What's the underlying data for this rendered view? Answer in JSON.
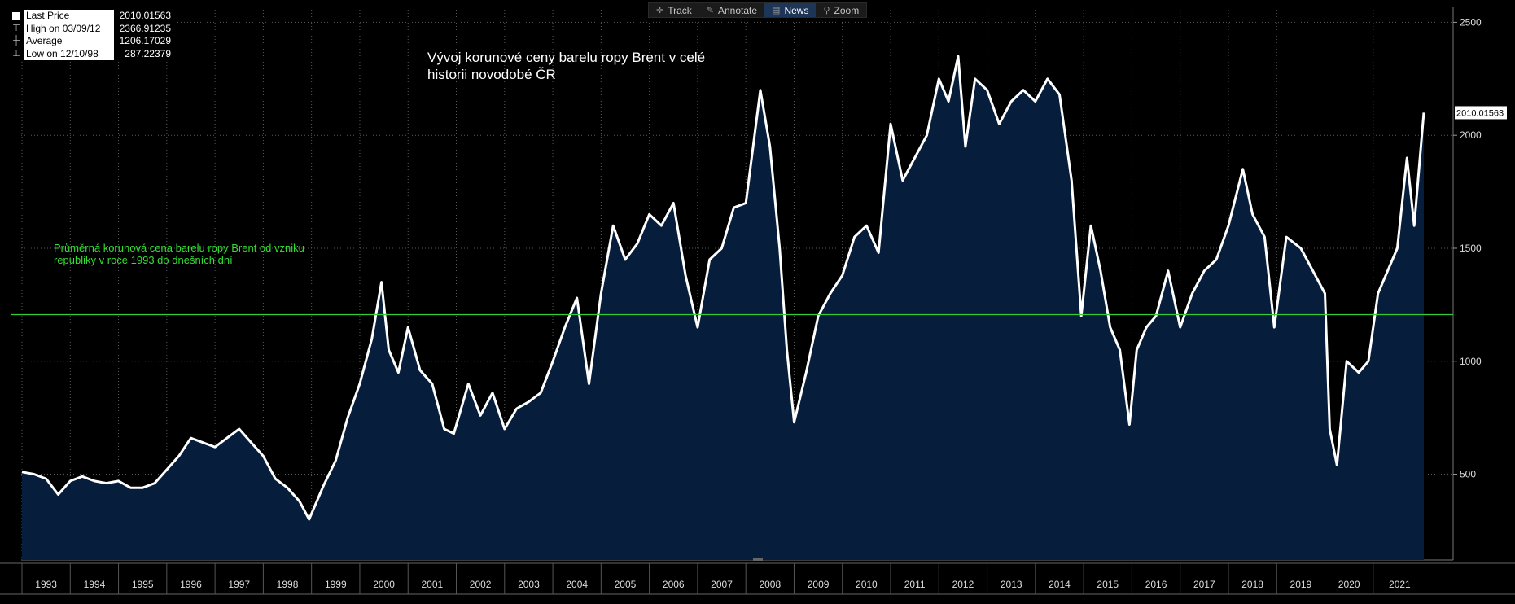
{
  "toolbar": {
    "track": "Track",
    "annotate": "Annotate",
    "news": "News",
    "zoom": "Zoom"
  },
  "legend": [
    {
      "label": "Last Price",
      "value": "2010.01563"
    },
    {
      "label": "High on 03/09/12",
      "value": "2366.91235"
    },
    {
      "label": "Average",
      "value": "1206.17029"
    },
    {
      "label": "Low on 12/10/98",
      "value": "287.22379"
    }
  ],
  "colors": {
    "background": "#000000",
    "area_fill": "#061d3c",
    "line": "#ffffff",
    "average_line": "#33cc33",
    "annotation": "#33dd33"
  },
  "chart_data": {
    "type": "area",
    "title": "Vývoj korunové ceny barelu ropy Brent v celé historii novodobé ČR",
    "title_lines": [
      "Vývoj korunové ceny barelu ropy Brent v celé",
      "historii novodobé ČR"
    ],
    "annotation_lines": [
      "Průměrná korunová cena barelu ropy Brent od vzniku",
      "republiky v roce 1993 do dnešních dní"
    ],
    "average": 1206.17029,
    "average_display": "1206.17029",
    "last_price_label": "2010.01563",
    "ylim": [
      120,
      2570
    ],
    "y_ticks": [
      500,
      1000,
      1500,
      2000,
      2500
    ],
    "y_tick_labels": [
      "500",
      "1000",
      "1500",
      "2000",
      "2500"
    ],
    "xlim": [
      1993.0,
      2022.1
    ],
    "x_tick_labels": [
      "1993",
      "1994",
      "1995",
      "1996",
      "1997",
      "1998",
      "1999",
      "2000",
      "2001",
      "2002",
      "2003",
      "2004",
      "2005",
      "2006",
      "2007",
      "2008",
      "2009",
      "2010",
      "2011",
      "2012",
      "2013",
      "2014",
      "2015",
      "2016",
      "2017",
      "2018",
      "2019",
      "2020",
      "2021"
    ],
    "grid": true,
    "legend_position": "top-left",
    "x": [
      1993.0,
      1993.25,
      1993.5,
      1993.75,
      1994.0,
      1994.25,
      1994.5,
      1994.75,
      1995.0,
      1995.25,
      1995.5,
      1995.75,
      1996.0,
      1996.25,
      1996.5,
      1996.75,
      1997.0,
      1997.25,
      1997.5,
      1997.75,
      1998.0,
      1998.25,
      1998.5,
      1998.75,
      1998.95,
      1999.25,
      1999.5,
      1999.75,
      2000.0,
      2000.25,
      2000.45,
      2000.6,
      2000.8,
      2001.0,
      2001.25,
      2001.5,
      2001.75,
      2001.95,
      2002.25,
      2002.5,
      2002.75,
      2003.0,
      2003.25,
      2003.5,
      2003.75,
      2004.0,
      2004.25,
      2004.5,
      2004.75,
      2005.0,
      2005.25,
      2005.5,
      2005.75,
      2006.0,
      2006.25,
      2006.5,
      2006.75,
      2007.0,
      2007.25,
      2007.5,
      2007.75,
      2008.0,
      2008.3,
      2008.5,
      2008.7,
      2008.85,
      2009.0,
      2009.25,
      2009.5,
      2009.75,
      2010.0,
      2010.25,
      2010.5,
      2010.75,
      2011.0,
      2011.25,
      2011.5,
      2011.75,
      2012.0,
      2012.2,
      2012.4,
      2012.55,
      2012.75,
      2013.0,
      2013.25,
      2013.5,
      2013.75,
      2014.0,
      2014.25,
      2014.5,
      2014.75,
      2014.95,
      2015.15,
      2015.35,
      2015.55,
      2015.75,
      2015.95,
      2016.1,
      2016.3,
      2016.5,
      2016.75,
      2017.0,
      2017.25,
      2017.5,
      2017.75,
      2018.0,
      2018.3,
      2018.5,
      2018.75,
      2018.95,
      2019.2,
      2019.5,
      2019.75,
      2020.0,
      2020.1,
      2020.25,
      2020.45,
      2020.7,
      2020.9,
      2021.1,
      2021.3,
      2021.5,
      2021.7,
      2021.85,
      2022.0,
      2022.05
    ],
    "y": [
      510,
      500,
      480,
      410,
      470,
      490,
      470,
      460,
      470,
      440,
      440,
      460,
      520,
      580,
      660,
      640,
      620,
      660,
      700,
      640,
      580,
      480,
      440,
      380,
      300,
      450,
      560,
      750,
      900,
      1100,
      1350,
      1050,
      950,
      1150,
      960,
      900,
      700,
      680,
      900,
      760,
      860,
      700,
      790,
      820,
      860,
      1000,
      1150,
      1280,
      900,
      1300,
      1600,
      1450,
      1520,
      1650,
      1600,
      1700,
      1380,
      1150,
      1450,
      1500,
      1680,
      1700,
      2200,
      1950,
      1500,
      1050,
      730,
      950,
      1200,
      1300,
      1380,
      1550,
      1600,
      1480,
      2050,
      1800,
      1900,
      2000,
      2250,
      2150,
      2350,
      1950,
      2250,
      2200,
      2050,
      2150,
      2200,
      2150,
      2250,
      2180,
      1800,
      1200,
      1600,
      1400,
      1150,
      1050,
      720,
      1050,
      1150,
      1200,
      1400,
      1150,
      1300,
      1400,
      1450,
      1600,
      1850,
      1650,
      1550,
      1150,
      1550,
      1500,
      1400,
      1300,
      700,
      540,
      1000,
      950,
      1000,
      1300,
      1400,
      1500,
      1900,
      1600,
      1980,
      2100
    ]
  }
}
